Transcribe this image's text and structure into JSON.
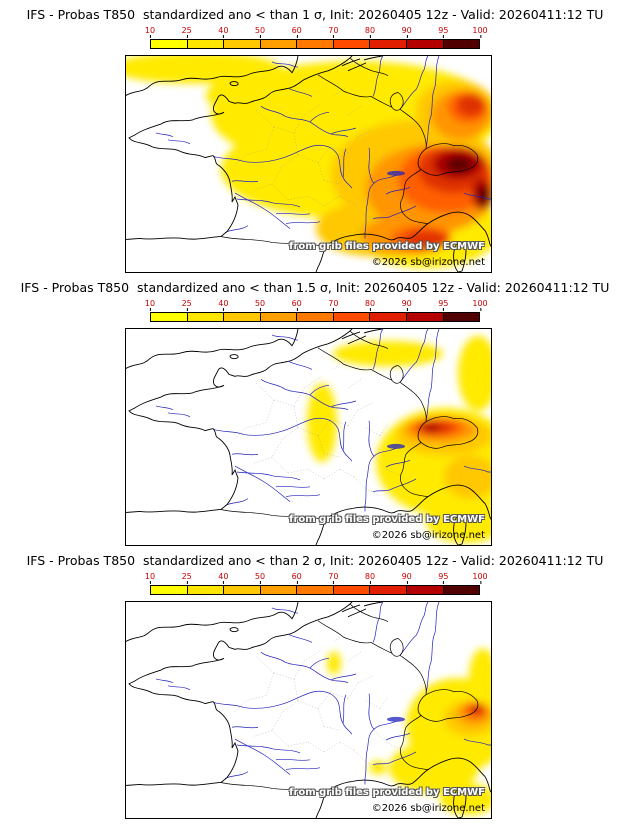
{
  "page": {
    "background": "#ffffff"
  },
  "colorbar": {
    "ticks": [
      "10",
      "25",
      "40",
      "50",
      "60",
      "70",
      "80",
      "90",
      "95",
      "100"
    ],
    "colors": [
      "#ffff00",
      "#ffe600",
      "#ffc800",
      "#ffa000",
      "#ff7800",
      "#ff4b00",
      "#e11e00",
      "#b40000",
      "#500000"
    ],
    "tick_color": "#cc0000"
  },
  "panels": [
    {
      "id": "prob-lt-1-sigma",
      "title": "IFS - Probas T850  standardized ano < than 1 σ, Init: 20260405 12z - Valid: 20260411:12 TU",
      "credit": "from grib files provided by ECMWF",
      "copyright": "©2026 sb@irizone.net"
    },
    {
      "id": "prob-lt-1p5-sigma",
      "title": "IFS - Probas T850  standardized ano < than 1.5 σ, Init: 20260405 12z - Valid: 20260411:12 TU",
      "credit": "from grib files provided by ECMWF",
      "copyright": "©2026 sb@irizone.net"
    },
    {
      "id": "prob-lt-2-sigma",
      "title": "IFS - Probas T850  standardized ano < than 2 σ, Init: 20260405 12z - Valid: 20260411:12 TU",
      "credit": "from grib files provided by ECMWF",
      "copyright": "©2026 sb@irizone.net"
    }
  ]
}
